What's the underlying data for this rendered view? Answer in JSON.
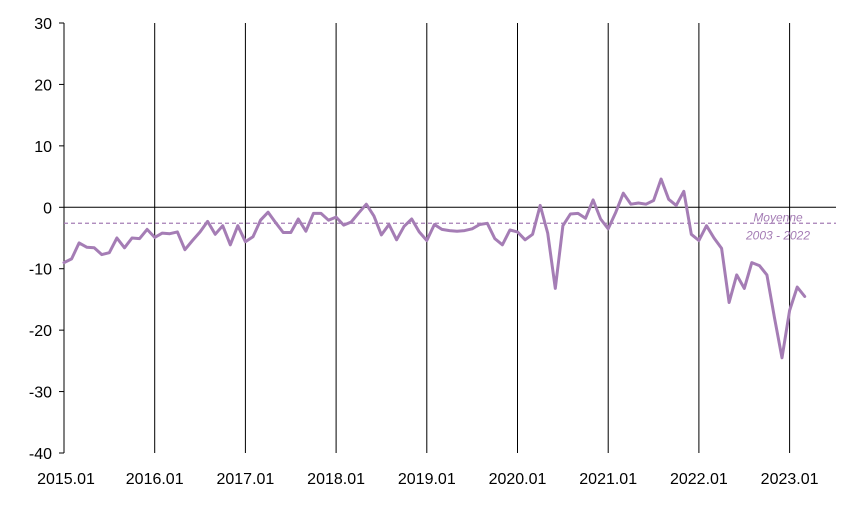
{
  "chart_data": {
    "type": "line",
    "x_tick_labels": [
      "2015.01",
      "2016.01",
      "2017.01",
      "2018.01",
      "2019.01",
      "2020.01",
      "2021.01",
      "2022.01",
      "2023.01"
    ],
    "y_tick_labels": [
      "30",
      "20",
      "10",
      "0",
      "-10",
      "-20",
      "-30",
      "-40"
    ],
    "ylim": [
      -40,
      30
    ],
    "xlim_years": [
      2015.0,
      2023.5
    ],
    "grid": "vertical lines at each year",
    "line_color": "#A57DB5",
    "series": [
      {
        "x_start": "2015.01",
        "frequency": "monthly",
        "values": [
          -9.0,
          -8.4,
          -5.8,
          -6.5,
          -6.6,
          -7.7,
          -7.4,
          -5.0,
          -6.6,
          -5.0,
          -5.1,
          -3.6,
          -4.9,
          -4.2,
          -4.3,
          -4.0,
          -6.9,
          -5.4,
          -4.0,
          -2.3,
          -4.4,
          -3.0,
          -6.1,
          -3.0,
          -5.6,
          -4.8,
          -2.1,
          -0.8,
          -2.5,
          -4.1,
          -4.1,
          -1.9,
          -3.9,
          -1.0,
          -1.0,
          -2.1,
          -1.6,
          -2.9,
          -2.4,
          -0.9,
          0.5,
          -1.4,
          -4.5,
          -2.8,
          -5.3,
          -3.1,
          -1.9,
          -4.0,
          -5.4,
          -2.8,
          -3.6,
          -3.8,
          -3.9,
          -3.8,
          -3.5,
          -2.8,
          -2.6,
          -5.1,
          -6.1,
          -3.7,
          -4.0,
          -5.3,
          -4.4,
          0.3,
          -4.2,
          -13.2,
          -3.0,
          -1.1,
          -1.0,
          -1.8,
          1.2,
          -1.9,
          -3.5,
          -0.8,
          2.3,
          0.5,
          0.7,
          0.5,
          1.1,
          4.6,
          1.3,
          0.3,
          2.6,
          -4.4,
          -5.4,
          -3.0,
          -5.0,
          -6.7,
          -15.5,
          -11.0,
          -13.2,
          -9.0,
          -9.5,
          -11.0,
          -18.0,
          -24.5,
          -16.8,
          -13.0,
          -14.5
        ]
      }
    ],
    "average": {
      "value": -2.6,
      "label_line1": "Moyenne",
      "label_line2": "2003 - 2022",
      "color": "#A57DB5",
      "style": "dashed"
    }
  }
}
